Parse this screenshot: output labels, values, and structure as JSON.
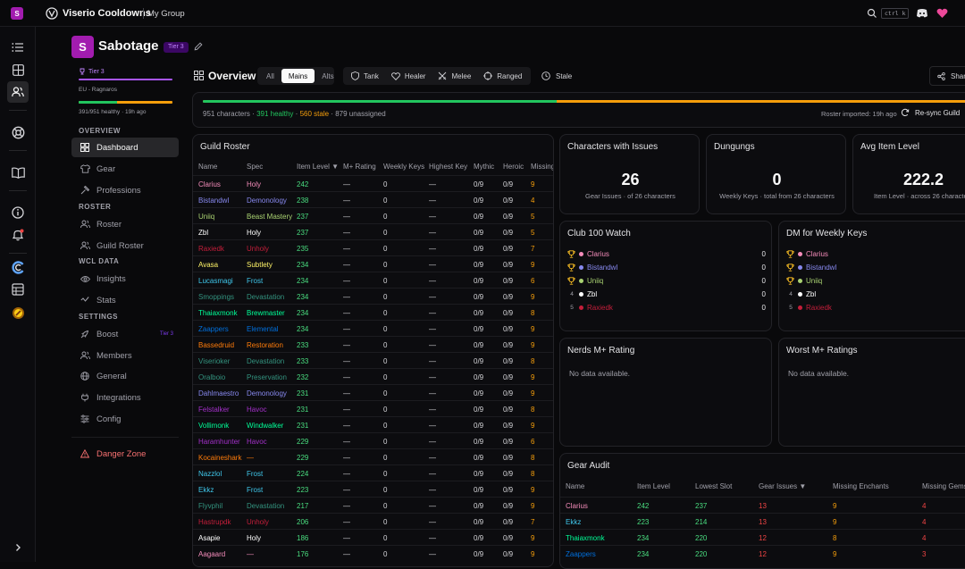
{
  "app": {
    "title": "Viserio Cooldowns",
    "group": "My Group",
    "workspace_initial": "S",
    "kbd": "ctrl k"
  },
  "guild": {
    "initial": "S",
    "name": "Sabotage",
    "tier_badge": "Tier 3",
    "tier_label": "Tier 3",
    "region": "EU - Ragnaros",
    "health_text": "391/951 healthy · 19h ago"
  },
  "sidebar": {
    "overview_label": "OVERVIEW",
    "overview_items": [
      {
        "label": "Dashboard",
        "icon": "dashboard-icon"
      },
      {
        "label": "Gear",
        "icon": "gear-shirt-icon"
      },
      {
        "label": "Professions",
        "icon": "hammer-icon"
      }
    ],
    "roster_label": "ROSTER",
    "roster_items": [
      {
        "label": "Roster",
        "icon": "users-icon"
      },
      {
        "label": "Guild Roster",
        "icon": "users-icon"
      }
    ],
    "wcl_label": "WCL DATA",
    "wcl_items": [
      {
        "label": "Insights",
        "icon": "eye-icon"
      },
      {
        "label": "Stats",
        "icon": "chart-icon"
      }
    ],
    "settings_label": "SETTINGS",
    "settings_items": [
      {
        "label": "Boost",
        "icon": "rocket-icon",
        "badge": "Tier 3"
      },
      {
        "label": "Members",
        "icon": "users-icon"
      },
      {
        "label": "General",
        "icon": "globe-icon"
      },
      {
        "label": "Integrations",
        "icon": "plug-icon"
      },
      {
        "label": "Config",
        "icon": "sliders-icon"
      }
    ],
    "danger_label": "Danger Zone"
  },
  "overview": {
    "title": "Overview",
    "filters": [
      "All",
      "Mains",
      "Alts"
    ],
    "active_filter": "Mains",
    "roles": [
      "Tank",
      "Healer",
      "Melee",
      "Ranged"
    ],
    "stale_label": "Stale",
    "share_label": "Share",
    "progress": {
      "healthy_fraction": 0.411,
      "stale_fraction": 0.589
    },
    "summary": {
      "characters": "951 characters",
      "healthy": "391 healthy",
      "stale": "560 stale",
      "unassigned": "879 unassigned"
    },
    "imported": "Roster imported: 19h ago",
    "resync_label": "Re-sync Guild"
  },
  "guild_roster": {
    "title": "Guild Roster",
    "columns": [
      "Name",
      "Spec",
      "Item Level",
      "M+ Rating",
      "Weekly Keys",
      "Highest Key",
      "Mythic",
      "Heroic",
      "Missing"
    ],
    "sort_indicator": "▼",
    "rows": [
      {
        "name": "Clarius",
        "spec": "Holy",
        "ilvl": "242",
        "rating": "—",
        "keys": "0",
        "highest": "—",
        "mythic": "0/9",
        "heroic": "0/9",
        "missing": "9",
        "color": "#f48cba"
      },
      {
        "name": "Bistandwl",
        "spec": "Demonology",
        "ilvl": "238",
        "rating": "—",
        "keys": "0",
        "highest": "—",
        "mythic": "0/9",
        "heroic": "0/9",
        "missing": "4",
        "color": "#8788ee"
      },
      {
        "name": "Uniiq",
        "spec": "Beast Mastery",
        "ilvl": "237",
        "rating": "—",
        "keys": "0",
        "highest": "—",
        "mythic": "0/9",
        "heroic": "0/9",
        "missing": "5",
        "color": "#aad372"
      },
      {
        "name": "Zbl",
        "spec": "Holy",
        "ilvl": "237",
        "rating": "—",
        "keys": "0",
        "highest": "—",
        "mythic": "0/9",
        "heroic": "0/9",
        "missing": "5",
        "color": "#ffffff"
      },
      {
        "name": "Raxiedk",
        "spec": "Unholy",
        "ilvl": "235",
        "rating": "—",
        "keys": "0",
        "highest": "—",
        "mythic": "0/9",
        "heroic": "0/9",
        "missing": "7",
        "color": "#c41e3a"
      },
      {
        "name": "Avasa",
        "spec": "Subtlety",
        "ilvl": "234",
        "rating": "—",
        "keys": "0",
        "highest": "—",
        "mythic": "0/9",
        "heroic": "0/9",
        "missing": "9",
        "color": "#fff468"
      },
      {
        "name": "Lucasmagi",
        "spec": "Frost",
        "ilvl": "234",
        "rating": "—",
        "keys": "0",
        "highest": "—",
        "mythic": "0/9",
        "heroic": "0/9",
        "missing": "6",
        "color": "#3fc7eb"
      },
      {
        "name": "Smoppings",
        "spec": "Devastation",
        "ilvl": "234",
        "rating": "—",
        "keys": "0",
        "highest": "—",
        "mythic": "0/9",
        "heroic": "0/9",
        "missing": "9",
        "color": "#33937f"
      },
      {
        "name": "Thaiaxmonk",
        "spec": "Brewmaster",
        "ilvl": "234",
        "rating": "—",
        "keys": "0",
        "highest": "—",
        "mythic": "0/9",
        "heroic": "0/9",
        "missing": "8",
        "color": "#00ff98"
      },
      {
        "name": "Zaappers",
        "spec": "Elemental",
        "ilvl": "234",
        "rating": "—",
        "keys": "0",
        "highest": "—",
        "mythic": "0/9",
        "heroic": "0/9",
        "missing": "9",
        "color": "#0070dd"
      },
      {
        "name": "Bassedruid",
        "spec": "Restoration",
        "ilvl": "233",
        "rating": "—",
        "keys": "0",
        "highest": "—",
        "mythic": "0/9",
        "heroic": "0/9",
        "missing": "9",
        "color": "#ff7c0a"
      },
      {
        "name": "Viserioker",
        "spec": "Devastation",
        "ilvl": "233",
        "rating": "—",
        "keys": "0",
        "highest": "—",
        "mythic": "0/9",
        "heroic": "0/9",
        "missing": "8",
        "color": "#33937f"
      },
      {
        "name": "Oralboio",
        "spec": "Preservation",
        "ilvl": "232",
        "rating": "—",
        "keys": "0",
        "highest": "—",
        "mythic": "0/9",
        "heroic": "0/9",
        "missing": "9",
        "color": "#33937f"
      },
      {
        "name": "Dahlmaestro",
        "spec": "Demonology",
        "ilvl": "231",
        "rating": "—",
        "keys": "0",
        "highest": "—",
        "mythic": "0/9",
        "heroic": "0/9",
        "missing": "9",
        "color": "#8788ee"
      },
      {
        "name": "Felstalker",
        "spec": "Havoc",
        "ilvl": "231",
        "rating": "—",
        "keys": "0",
        "highest": "—",
        "mythic": "0/9",
        "heroic": "0/9",
        "missing": "8",
        "color": "#a330c9"
      },
      {
        "name": "Vollimonk",
        "spec": "Windwalker",
        "ilvl": "231",
        "rating": "—",
        "keys": "0",
        "highest": "—",
        "mythic": "0/9",
        "heroic": "0/9",
        "missing": "9",
        "color": "#00ff98"
      },
      {
        "name": "Haramhunter",
        "spec": "Havoc",
        "ilvl": "229",
        "rating": "—",
        "keys": "0",
        "highest": "—",
        "mythic": "0/9",
        "heroic": "0/9",
        "missing": "6",
        "color": "#a330c9"
      },
      {
        "name": "Kocaineshark",
        "spec": "—",
        "ilvl": "229",
        "rating": "—",
        "keys": "0",
        "highest": "—",
        "mythic": "0/9",
        "heroic": "0/9",
        "missing": "8",
        "color": "#ff7c0a"
      },
      {
        "name": "Nazzlol",
        "spec": "Frost",
        "ilvl": "224",
        "rating": "—",
        "keys": "0",
        "highest": "—",
        "mythic": "0/9",
        "heroic": "0/9",
        "missing": "8",
        "color": "#3fc7eb"
      },
      {
        "name": "Ekkz",
        "spec": "Frost",
        "ilvl": "223",
        "rating": "—",
        "keys": "0",
        "highest": "—",
        "mythic": "0/9",
        "heroic": "0/9",
        "missing": "9",
        "color": "#3fc7eb"
      },
      {
        "name": "Flyvphil",
        "spec": "Devastation",
        "ilvl": "217",
        "rating": "—",
        "keys": "0",
        "highest": "—",
        "mythic": "0/9",
        "heroic": "0/9",
        "missing": "9",
        "color": "#33937f"
      },
      {
        "name": "Hastrupdk",
        "spec": "Unholy",
        "ilvl": "206",
        "rating": "—",
        "keys": "0",
        "highest": "—",
        "mythic": "0/9",
        "heroic": "0/9",
        "missing": "7",
        "color": "#c41e3a"
      },
      {
        "name": "Asapie",
        "spec": "Holy",
        "ilvl": "186",
        "rating": "—",
        "keys": "0",
        "highest": "—",
        "mythic": "0/9",
        "heroic": "0/9",
        "missing": "9",
        "color": "#ffffff"
      },
      {
        "name": "Aagaard",
        "spec": "—",
        "ilvl": "176",
        "rating": "—",
        "keys": "0",
        "highest": "—",
        "mythic": "0/9",
        "heroic": "0/9",
        "missing": "9",
        "color": "#f48cba"
      }
    ]
  },
  "stats": [
    {
      "title": "Characters with Issues",
      "value": "26",
      "sub": "Gear Issues · of 26 characters"
    },
    {
      "title": "Dungungs",
      "value": "0",
      "sub": "Weekly Keys · total from 26 characters"
    },
    {
      "title": "Avg Item Level",
      "value": "222.2",
      "sub": "Item Level · across 26 characters"
    }
  ],
  "club100": {
    "title": "Club 100 Watch",
    "rows": [
      {
        "rank": "trophy",
        "name": "Clarius",
        "value": "0",
        "color": "#f48cba"
      },
      {
        "rank": "trophy",
        "name": "Bistandwl",
        "value": "0",
        "color": "#8788ee"
      },
      {
        "rank": "trophy",
        "name": "Uniiq",
        "value": "0",
        "color": "#aad372"
      },
      {
        "rank": "4",
        "name": "Zbl",
        "value": "0",
        "color": "#ffffff"
      },
      {
        "rank": "5",
        "name": "Raxiedk",
        "value": "0",
        "color": "#c41e3a"
      }
    ]
  },
  "dm_keys": {
    "title": "DM for Weekly Keys",
    "rows": [
      {
        "rank": "trophy",
        "name": "Clarius",
        "value": "0",
        "color": "#f48cba"
      },
      {
        "rank": "trophy",
        "name": "Bistandwl",
        "value": "0",
        "color": "#8788ee"
      },
      {
        "rank": "trophy",
        "name": "Uniiq",
        "value": "0",
        "color": "#aad372"
      },
      {
        "rank": "4",
        "name": "Zbl",
        "value": "0",
        "color": "#ffffff"
      },
      {
        "rank": "5",
        "name": "Raxiedk",
        "value": "0",
        "color": "#c41e3a"
      }
    ]
  },
  "nerds": {
    "title": "Nerds M+ Rating",
    "empty": "No data available."
  },
  "worst": {
    "title": "Worst M+ Ratings",
    "empty": "No data available."
  },
  "gear_audit": {
    "title": "Gear Audit",
    "columns": [
      "Name",
      "Item Level",
      "Lowest Slot",
      "Gear Issues",
      "Missing Enchants",
      "Missing Gems"
    ],
    "sort_indicator": "▼",
    "rows": [
      {
        "name": "Clarius",
        "ilvl": "242",
        "lowest": "237",
        "issues": "13",
        "enchants": "9",
        "gems": "4",
        "color": "#f48cba"
      },
      {
        "name": "Ekkz",
        "ilvl": "223",
        "lowest": "214",
        "issues": "13",
        "enchants": "9",
        "gems": "4",
        "color": "#3fc7eb"
      },
      {
        "name": "Thaiaxmonk",
        "ilvl": "234",
        "lowest": "220",
        "issues": "12",
        "enchants": "8",
        "gems": "4",
        "color": "#00ff98"
      },
      {
        "name": "Zaappers",
        "ilvl": "234",
        "lowest": "220",
        "issues": "12",
        "enchants": "9",
        "gems": "3",
        "color": "#0070dd"
      }
    ]
  },
  "colors": {
    "accent": "#a855f7",
    "green": "#22c55e",
    "orange": "#f59e0b",
    "red": "#ef4444",
    "ilvl": "#4ade80",
    "danger": "#f87171"
  }
}
